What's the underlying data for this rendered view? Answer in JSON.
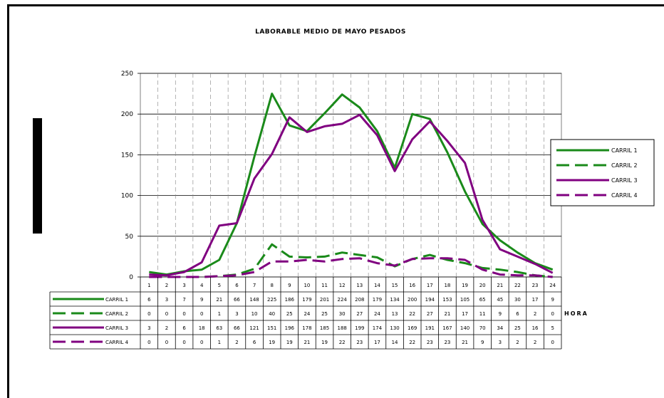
{
  "chart_data": {
    "type": "line",
    "title": "LABORABLE MEDIO DE MAYO PESADOS",
    "xlabel": "HORA",
    "ylabel": "",
    "ylim": [
      0,
      250
    ],
    "yticks": [
      "0",
      "50",
      "100",
      "150",
      "200",
      "250"
    ],
    "grid": "horizontal solid, vertical dashed",
    "legend_position": "right",
    "categories": [
      "1",
      "2",
      "3",
      "4",
      "5",
      "6",
      "7",
      "8",
      "9",
      "10",
      "11",
      "12",
      "13",
      "14",
      "15",
      "16",
      "17",
      "18",
      "19",
      "20",
      "21",
      "22",
      "23",
      "24"
    ],
    "series": [
      {
        "name": "CARRIL 1",
        "color": "#1a8a1a",
        "style": "solid",
        "values": [
          6,
          3,
          7,
          9,
          21,
          66,
          148,
          225,
          186,
          179,
          201,
          224,
          208,
          179,
          134,
          200,
          194,
          153,
          105,
          65,
          45,
          30,
          17,
          9
        ]
      },
      {
        "name": "CARRIL 2",
        "color": "#1a8a1a",
        "style": "dashed",
        "values": [
          0,
          0,
          0,
          0,
          1,
          3,
          10,
          40,
          25,
          24,
          25,
          30,
          27,
          24,
          13,
          22,
          27,
          21,
          17,
          11,
          9,
          6,
          2,
          0
        ]
      },
      {
        "name": "CARRIL 3",
        "color": "#800080",
        "style": "solid",
        "values": [
          3,
          2,
          6,
          18,
          63,
          66,
          121,
          151,
          196,
          178,
          185,
          188,
          199,
          174,
          130,
          169,
          191,
          167,
          140,
          70,
          34,
          25,
          16,
          5
        ]
      },
      {
        "name": "CARRIL 4",
        "color": "#800080",
        "style": "dashed",
        "values": [
          0,
          0,
          0,
          0,
          1,
          2,
          6,
          19,
          19,
          21,
          19,
          22,
          23,
          17,
          14,
          22,
          23,
          23,
          21,
          9,
          3,
          2,
          2,
          0
        ]
      }
    ]
  }
}
